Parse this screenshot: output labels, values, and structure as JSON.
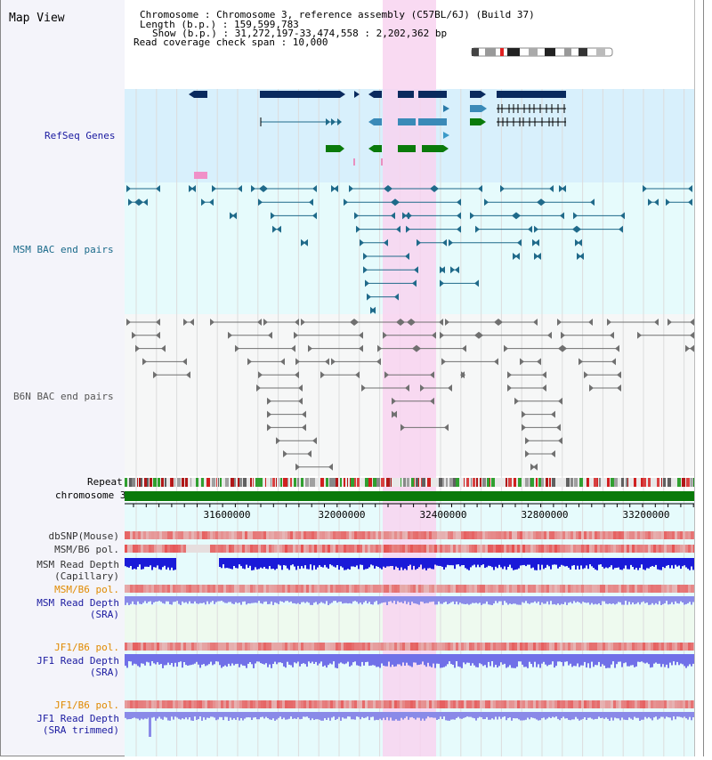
{
  "title": "Map View",
  "header": {
    "lines": [
      "Chromosome      : Chromosome 3, reference assembly (C57BL/6J) (Build 37)",
      "Length (b.p.) : 159,599,783",
      "Show (b.p.) : 31,272,197-33,474,558 : 2,202,362 bp",
      "Read coverage check span : 10,000"
    ]
  },
  "tracks": {
    "refseq": "RefSeq Genes",
    "msm_bac": "MSM BAC end pairs",
    "b6n_bac": "B6N BAC end pairs",
    "repeat": "Repeat",
    "chromosome": "chromosome 3",
    "dbsnp": "dbSNP(Mouse)",
    "msm_b6_pol": "MSM/B6 pol.",
    "msm_rd_cap": "MSM Read Depth",
    "msm_rd_cap_sub": "(Capillary)",
    "msm_b6_pol2": "MSM/B6 pol.",
    "msm_rd_sra": "MSM Read Depth",
    "msm_rd_sra_sub": "(SRA)",
    "jf1_pol": "JF1/B6 pol.",
    "jf1_rd": "JF1 Read Depth",
    "jf1_rd_sub": "(SRA)",
    "jf1_pol2": "JF1/B6 pol.",
    "jf1_rd2": "JF1 Read Depth",
    "jf1_rd2_sub": "(SRA trimmed)"
  },
  "axis": {
    "ticks": [
      "31600000",
      "32000000",
      "32400000",
      "32800000",
      "33200000"
    ]
  },
  "colors": {
    "navy": "#0a2a5e",
    "teal": "#1f6a8a",
    "green": "#0a7a0a",
    "highlight": "#f8d4f0",
    "grey": "#707070"
  }
}
